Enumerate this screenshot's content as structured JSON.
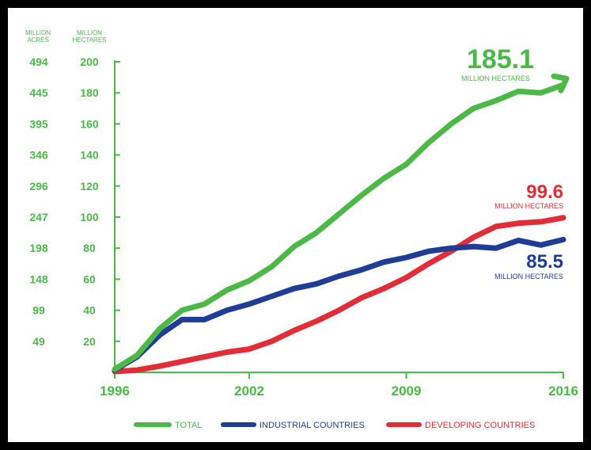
{
  "chart_data": {
    "type": "line",
    "y_left_outer_title_lines": [
      "MILLION",
      "ACRES"
    ],
    "y_left_inner_title_lines": [
      "MILLION",
      "HECTARES"
    ],
    "y_ticks_hectares": [
      20,
      40,
      60,
      80,
      100,
      120,
      140,
      160,
      180,
      200
    ],
    "y_ticks_acres": [
      "49",
      "99",
      "148",
      "198",
      "247",
      "296",
      "346",
      "395",
      "445",
      "494"
    ],
    "ylim": [
      0,
      200
    ],
    "x_ticks": [
      "1996",
      "2002",
      "2009",
      "2016"
    ],
    "x": [
      1996,
      1997,
      1998,
      1999,
      2000,
      2001,
      2002,
      2003,
      2004,
      2005,
      2006,
      2007,
      2008,
      2009,
      2010,
      2011,
      2012,
      2013,
      2014,
      2015,
      2016
    ],
    "series": [
      {
        "key": "total",
        "name": "TOTAL",
        "color": "#4cb848",
        "values": [
          2,
          11,
          28,
          40,
          44,
          53,
          59,
          68,
          81,
          90,
          102,
          114,
          125,
          134,
          148,
          160,
          170,
          175,
          181,
          180,
          185.1
        ]
      },
      {
        "key": "industrial",
        "name": "INDUSTRIAL COUNTRIES",
        "color": "#1f3d94",
        "values": [
          1.5,
          10,
          24,
          34,
          34,
          40,
          44,
          49,
          54,
          57,
          62,
          66,
          71,
          74,
          78,
          80,
          81,
          80,
          85,
          82,
          85.5
        ]
      },
      {
        "key": "developing",
        "name": "DEVELOPING COUNTRIES",
        "color": "#e02d38",
        "values": [
          0.5,
          1.5,
          4,
          7,
          10,
          13,
          15,
          20,
          27,
          33,
          40,
          48,
          54,
          61,
          70,
          78,
          87,
          94,
          96,
          97,
          99.6
        ]
      }
    ],
    "annotations": [
      {
        "series": "total",
        "value": "185.1",
        "unit": "MILLION HECTARES"
      },
      {
        "series": "developing",
        "value": "99.6",
        "unit": "MILLION HECTARES"
      },
      {
        "series": "industrial",
        "value": "85.5",
        "unit": "MILLION HECTARES"
      }
    ],
    "legend_position": "bottom"
  }
}
